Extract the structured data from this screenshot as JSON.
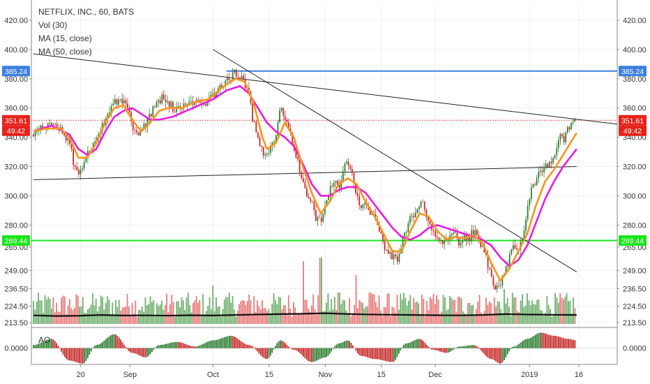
{
  "chart_data": {
    "type": "line",
    "legend": {
      "title": "NETFLIX, INC., 60, BATS",
      "items": [
        "Vol (30)",
        "MA (15, close)",
        "MA (50, close)"
      ]
    },
    "price_axis": {
      "ticks": [
        "420.00",
        "400.00",
        "380.00",
        "360.00",
        "340.00",
        "320.00",
        "300.00",
        "280.00",
        "265.00",
        "249.00",
        "236.50",
        "224.50",
        "213.50"
      ],
      "tick_values": [
        420,
        400,
        380,
        360,
        340,
        320,
        300,
        280,
        265,
        249,
        236.5,
        224.5,
        213.5
      ],
      "range": [
        211,
        430
      ]
    },
    "time_axis": {
      "labels": [
        "20",
        "Sep",
        "Oct",
        "15",
        "Nov",
        "15",
        "Dec",
        "2019",
        "16"
      ],
      "positions": [
        10.5,
        21.5,
        40,
        52.5,
        65,
        77.5,
        89.5,
        110.5,
        121.5
      ],
      "range": [
        0,
        130
      ]
    },
    "price_tags": {
      "left": [
        {
          "text": "385.24",
          "value": 385.24,
          "color": "#3d7fe0"
        },
        {
          "text": "351.61",
          "value": 351.61,
          "color": "#e6231b"
        },
        {
          "text": "49:42",
          "value": 344.5,
          "color": "#e6231b"
        },
        {
          "text": "269.44",
          "value": 269.44,
          "color": "#19e619",
          "text_color": "#000000"
        }
      ],
      "right": [
        {
          "text": "385.24",
          "value": 385.24,
          "color": "#3d7fe0"
        },
        {
          "text": "351.61",
          "value": 351.61,
          "color": "#e6231b"
        },
        {
          "text": "49:42",
          "value": 344.5,
          "color": "#e6231b"
        },
        {
          "text": "269.44",
          "value": 269.44,
          "color": "#19e619",
          "text_color": "#000000"
        }
      ]
    },
    "horizontal_levels": [
      {
        "value": 385.24,
        "color": "#3d7fe0",
        "style": "solid",
        "x_start": 43
      },
      {
        "value": 269.44,
        "color": "#19e619",
        "style": "solid",
        "x_start": 0
      },
      {
        "value": 351.61,
        "color": "#e6231b",
        "style": "dotted",
        "x_start": 0
      }
    ],
    "trendlines": [
      {
        "points": [
          [
            0,
            397
          ],
          [
            130,
            349
          ]
        ],
        "color": "#222222"
      },
      {
        "points": [
          [
            0,
            311
          ],
          [
            121,
            320
          ]
        ],
        "color": "#222222"
      },
      {
        "points": [
          [
            40,
            400
          ],
          [
            121,
            248
          ]
        ],
        "color": "#222222"
      }
    ],
    "price_series": [
      {
        "x": 0,
        "y": 342
      },
      {
        "x": 2,
        "y": 346
      },
      {
        "x": 4,
        "y": 349
      },
      {
        "x": 6,
        "y": 346
      },
      {
        "x": 8,
        "y": 336
      },
      {
        "x": 9,
        "y": 322
      },
      {
        "x": 10,
        "y": 316
      },
      {
        "x": 11,
        "y": 322
      },
      {
        "x": 13,
        "y": 334
      },
      {
        "x": 15,
        "y": 345
      },
      {
        "x": 17,
        "y": 360
      },
      {
        "x": 19,
        "y": 366
      },
      {
        "x": 21,
        "y": 360
      },
      {
        "x": 22,
        "y": 348
      },
      {
        "x": 23,
        "y": 342
      },
      {
        "x": 25,
        "y": 348
      },
      {
        "x": 27,
        "y": 362
      },
      {
        "x": 29,
        "y": 368
      },
      {
        "x": 31,
        "y": 360
      },
      {
        "x": 33,
        "y": 360
      },
      {
        "x": 35,
        "y": 366
      },
      {
        "x": 37,
        "y": 362
      },
      {
        "x": 39,
        "y": 366
      },
      {
        "x": 41,
        "y": 372
      },
      {
        "x": 43,
        "y": 380
      },
      {
        "x": 45,
        "y": 384
      },
      {
        "x": 47,
        "y": 378
      },
      {
        "x": 48,
        "y": 370
      },
      {
        "x": 49,
        "y": 350
      },
      {
        "x": 50,
        "y": 342
      },
      {
        "x": 51,
        "y": 330
      },
      {
        "x": 52,
        "y": 326
      },
      {
        "x": 53,
        "y": 336
      },
      {
        "x": 54,
        "y": 340
      },
      {
        "x": 55,
        "y": 364
      },
      {
        "x": 56,
        "y": 354
      },
      {
        "x": 57,
        "y": 343
      },
      {
        "x": 58,
        "y": 334
      },
      {
        "x": 59,
        "y": 322
      },
      {
        "x": 60,
        "y": 310
      },
      {
        "x": 61,
        "y": 300
      },
      {
        "x": 62,
        "y": 294
      },
      {
        "x": 63,
        "y": 284
      },
      {
        "x": 64,
        "y": 282
      },
      {
        "x": 65,
        "y": 294
      },
      {
        "x": 66,
        "y": 306
      },
      {
        "x": 67,
        "y": 310
      },
      {
        "x": 68,
        "y": 306
      },
      {
        "x": 69,
        "y": 318
      },
      {
        "x": 70,
        "y": 322
      },
      {
        "x": 71,
        "y": 316
      },
      {
        "x": 72,
        "y": 300
      },
      {
        "x": 73,
        "y": 292
      },
      {
        "x": 74,
        "y": 298
      },
      {
        "x": 75,
        "y": 290
      },
      {
        "x": 76,
        "y": 284
      },
      {
        "x": 77,
        "y": 276
      },
      {
        "x": 78,
        "y": 266
      },
      {
        "x": 79,
        "y": 262
      },
      {
        "x": 80,
        "y": 258
      },
      {
        "x": 81,
        "y": 256
      },
      {
        "x": 82,
        "y": 268
      },
      {
        "x": 83,
        "y": 275
      },
      {
        "x": 84,
        "y": 288
      },
      {
        "x": 85,
        "y": 285
      },
      {
        "x": 86,
        "y": 296
      },
      {
        "x": 87,
        "y": 292
      },
      {
        "x": 88,
        "y": 282
      },
      {
        "x": 89,
        "y": 276
      },
      {
        "x": 90,
        "y": 270
      },
      {
        "x": 91,
        "y": 266
      },
      {
        "x": 92,
        "y": 270
      },
      {
        "x": 93,
        "y": 276
      },
      {
        "x": 94,
        "y": 272
      },
      {
        "x": 95,
        "y": 266
      },
      {
        "x": 96,
        "y": 272
      },
      {
        "x": 97,
        "y": 270
      },
      {
        "x": 98,
        "y": 276
      },
      {
        "x": 99,
        "y": 272
      },
      {
        "x": 100,
        "y": 264
      },
      {
        "x": 101,
        "y": 256
      },
      {
        "x": 102,
        "y": 246
      },
      {
        "x": 103,
        "y": 236
      },
      {
        "x": 104,
        "y": 240
      },
      {
        "x": 105,
        "y": 250
      },
      {
        "x": 106,
        "y": 258
      },
      {
        "x": 107,
        "y": 268
      },
      {
        "x": 108,
        "y": 262
      },
      {
        "x": 109,
        "y": 274
      },
      {
        "x": 110,
        "y": 290
      },
      {
        "x": 111,
        "y": 304
      },
      {
        "x": 112,
        "y": 312
      },
      {
        "x": 113,
        "y": 316
      },
      {
        "x": 114,
        "y": 320
      },
      {
        "x": 115,
        "y": 322
      },
      {
        "x": 116,
        "y": 326
      },
      {
        "x": 117,
        "y": 340
      },
      {
        "x": 118,
        "y": 338
      },
      {
        "x": 119,
        "y": 346
      },
      {
        "x": 120,
        "y": 352
      },
      {
        "x": 121,
        "y": 350
      }
    ],
    "ma15": [
      {
        "x": 0,
        "y": 344
      },
      {
        "x": 3,
        "y": 346
      },
      {
        "x": 6,
        "y": 346
      },
      {
        "x": 8,
        "y": 340
      },
      {
        "x": 10,
        "y": 326
      },
      {
        "x": 12,
        "y": 326
      },
      {
        "x": 14,
        "y": 336
      },
      {
        "x": 16,
        "y": 350
      },
      {
        "x": 18,
        "y": 360
      },
      {
        "x": 20,
        "y": 362
      },
      {
        "x": 22,
        "y": 352
      },
      {
        "x": 24,
        "y": 344
      },
      {
        "x": 26,
        "y": 350
      },
      {
        "x": 28,
        "y": 358
      },
      {
        "x": 30,
        "y": 360
      },
      {
        "x": 33,
        "y": 360
      },
      {
        "x": 36,
        "y": 364
      },
      {
        "x": 39,
        "y": 366
      },
      {
        "x": 42,
        "y": 374
      },
      {
        "x": 45,
        "y": 380
      },
      {
        "x": 47,
        "y": 378
      },
      {
        "x": 49,
        "y": 364
      },
      {
        "x": 51,
        "y": 340
      },
      {
        "x": 52,
        "y": 332
      },
      {
        "x": 54,
        "y": 336
      },
      {
        "x": 56,
        "y": 350
      },
      {
        "x": 58,
        "y": 340
      },
      {
        "x": 60,
        "y": 320
      },
      {
        "x": 62,
        "y": 302
      },
      {
        "x": 64,
        "y": 288
      },
      {
        "x": 66,
        "y": 296
      },
      {
        "x": 68,
        "y": 308
      },
      {
        "x": 70,
        "y": 312
      },
      {
        "x": 72,
        "y": 308
      },
      {
        "x": 74,
        "y": 296
      },
      {
        "x": 76,
        "y": 286
      },
      {
        "x": 78,
        "y": 274
      },
      {
        "x": 80,
        "y": 262
      },
      {
        "x": 82,
        "y": 262
      },
      {
        "x": 84,
        "y": 276
      },
      {
        "x": 86,
        "y": 288
      },
      {
        "x": 88,
        "y": 286
      },
      {
        "x": 90,
        "y": 276
      },
      {
        "x": 92,
        "y": 270
      },
      {
        "x": 94,
        "y": 272
      },
      {
        "x": 96,
        "y": 271
      },
      {
        "x": 98,
        "y": 273
      },
      {
        "x": 100,
        "y": 268
      },
      {
        "x": 102,
        "y": 254
      },
      {
        "x": 104,
        "y": 242
      },
      {
        "x": 106,
        "y": 250
      },
      {
        "x": 108,
        "y": 262
      },
      {
        "x": 110,
        "y": 274
      },
      {
        "x": 112,
        "y": 294
      },
      {
        "x": 114,
        "y": 310
      },
      {
        "x": 116,
        "y": 318
      },
      {
        "x": 118,
        "y": 328
      },
      {
        "x": 120,
        "y": 338
      },
      {
        "x": 121,
        "y": 343
      }
    ],
    "ma50": [
      {
        "x": 0,
        "y": 344
      },
      {
        "x": 4,
        "y": 348
      },
      {
        "x": 8,
        "y": 342
      },
      {
        "x": 10,
        "y": 332
      },
      {
        "x": 12,
        "y": 328
      },
      {
        "x": 14,
        "y": 332
      },
      {
        "x": 16,
        "y": 344
      },
      {
        "x": 18,
        "y": 354
      },
      {
        "x": 20,
        "y": 358
      },
      {
        "x": 22,
        "y": 360
      },
      {
        "x": 24,
        "y": 356
      },
      {
        "x": 26,
        "y": 352
      },
      {
        "x": 28,
        "y": 352
      },
      {
        "x": 31,
        "y": 354
      },
      {
        "x": 34,
        "y": 358
      },
      {
        "x": 37,
        "y": 362
      },
      {
        "x": 40,
        "y": 366
      },
      {
        "x": 43,
        "y": 372
      },
      {
        "x": 46,
        "y": 375
      },
      {
        "x": 48,
        "y": 370
      },
      {
        "x": 50,
        "y": 360
      },
      {
        "x": 52,
        "y": 350
      },
      {
        "x": 54,
        "y": 344
      },
      {
        "x": 56,
        "y": 340
      },
      {
        "x": 58,
        "y": 334
      },
      {
        "x": 60,
        "y": 322
      },
      {
        "x": 62,
        "y": 308
      },
      {
        "x": 64,
        "y": 300
      },
      {
        "x": 66,
        "y": 300
      },
      {
        "x": 68,
        "y": 304
      },
      {
        "x": 70,
        "y": 306
      },
      {
        "x": 72,
        "y": 306
      },
      {
        "x": 74,
        "y": 302
      },
      {
        "x": 76,
        "y": 294
      },
      {
        "x": 78,
        "y": 286
      },
      {
        "x": 80,
        "y": 278
      },
      {
        "x": 82,
        "y": 272
      },
      {
        "x": 84,
        "y": 270
      },
      {
        "x": 86,
        "y": 273
      },
      {
        "x": 88,
        "y": 278
      },
      {
        "x": 90,
        "y": 280
      },
      {
        "x": 92,
        "y": 278
      },
      {
        "x": 94,
        "y": 276
      },
      {
        "x": 96,
        "y": 274
      },
      {
        "x": 98,
        "y": 272
      },
      {
        "x": 100,
        "y": 270
      },
      {
        "x": 102,
        "y": 266
      },
      {
        "x": 104,
        "y": 258
      },
      {
        "x": 106,
        "y": 252
      },
      {
        "x": 108,
        "y": 256
      },
      {
        "x": 110,
        "y": 266
      },
      {
        "x": 112,
        "y": 282
      },
      {
        "x": 114,
        "y": 298
      },
      {
        "x": 116,
        "y": 310
      },
      {
        "x": 118,
        "y": 320
      },
      {
        "x": 120,
        "y": 328
      },
      {
        "x": 121,
        "y": 332
      }
    ],
    "volume_avg": [
      {
        "x": 0,
        "y": 0.35
      },
      {
        "x": 5,
        "y": 0.3
      },
      {
        "x": 10,
        "y": 0.32
      },
      {
        "x": 15,
        "y": 0.38
      },
      {
        "x": 20,
        "y": 0.34
      },
      {
        "x": 25,
        "y": 0.35
      },
      {
        "x": 30,
        "y": 0.33
      },
      {
        "x": 35,
        "y": 0.36
      },
      {
        "x": 40,
        "y": 0.34
      },
      {
        "x": 45,
        "y": 0.38
      },
      {
        "x": 50,
        "y": 0.42
      },
      {
        "x": 55,
        "y": 0.45
      },
      {
        "x": 60,
        "y": 0.48
      },
      {
        "x": 65,
        "y": 0.52
      },
      {
        "x": 70,
        "y": 0.46
      },
      {
        "x": 75,
        "y": 0.42
      },
      {
        "x": 80,
        "y": 0.4
      },
      {
        "x": 85,
        "y": 0.38
      },
      {
        "x": 90,
        "y": 0.36
      },
      {
        "x": 95,
        "y": 0.35
      },
      {
        "x": 100,
        "y": 0.38
      },
      {
        "x": 105,
        "y": 0.45
      },
      {
        "x": 110,
        "y": 0.42
      },
      {
        "x": 115,
        "y": 0.4
      },
      {
        "x": 120,
        "y": 0.39
      },
      {
        "x": 121,
        "y": 0.38
      }
    ],
    "ao_indicator": {
      "label": "AO",
      "zero_tick": "0.0000",
      "anchors": [
        [
          0,
          0.2
        ],
        [
          4,
          0.6
        ],
        [
          8,
          -0.8
        ],
        [
          11,
          -1.0
        ],
        [
          14,
          0.2
        ],
        [
          18,
          0.9
        ],
        [
          22,
          -0.3
        ],
        [
          25,
          -0.6
        ],
        [
          28,
          0.2
        ],
        [
          32,
          0.4
        ],
        [
          36,
          0.1
        ],
        [
          40,
          0.5
        ],
        [
          44,
          0.8
        ],
        [
          48,
          0.2
        ],
        [
          52,
          -0.7
        ],
        [
          55,
          0.5
        ],
        [
          58,
          -0.1
        ],
        [
          62,
          -0.9
        ],
        [
          65,
          -0.6
        ],
        [
          68,
          0.3
        ],
        [
          70,
          0.5
        ],
        [
          73,
          -0.5
        ],
        [
          76,
          -0.7
        ],
        [
          80,
          -0.9
        ],
        [
          83,
          0.3
        ],
        [
          86,
          0.6
        ],
        [
          89,
          -0.1
        ],
        [
          92,
          -0.3
        ],
        [
          95,
          0.1
        ],
        [
          98,
          0.2
        ],
        [
          102,
          -0.7
        ],
        [
          104,
          -1.0
        ],
        [
          107,
          0.1
        ],
        [
          110,
          0.6
        ],
        [
          113,
          1.0
        ],
        [
          116,
          0.8
        ],
        [
          119,
          0.6
        ],
        [
          121,
          0.5
        ]
      ]
    }
  }
}
